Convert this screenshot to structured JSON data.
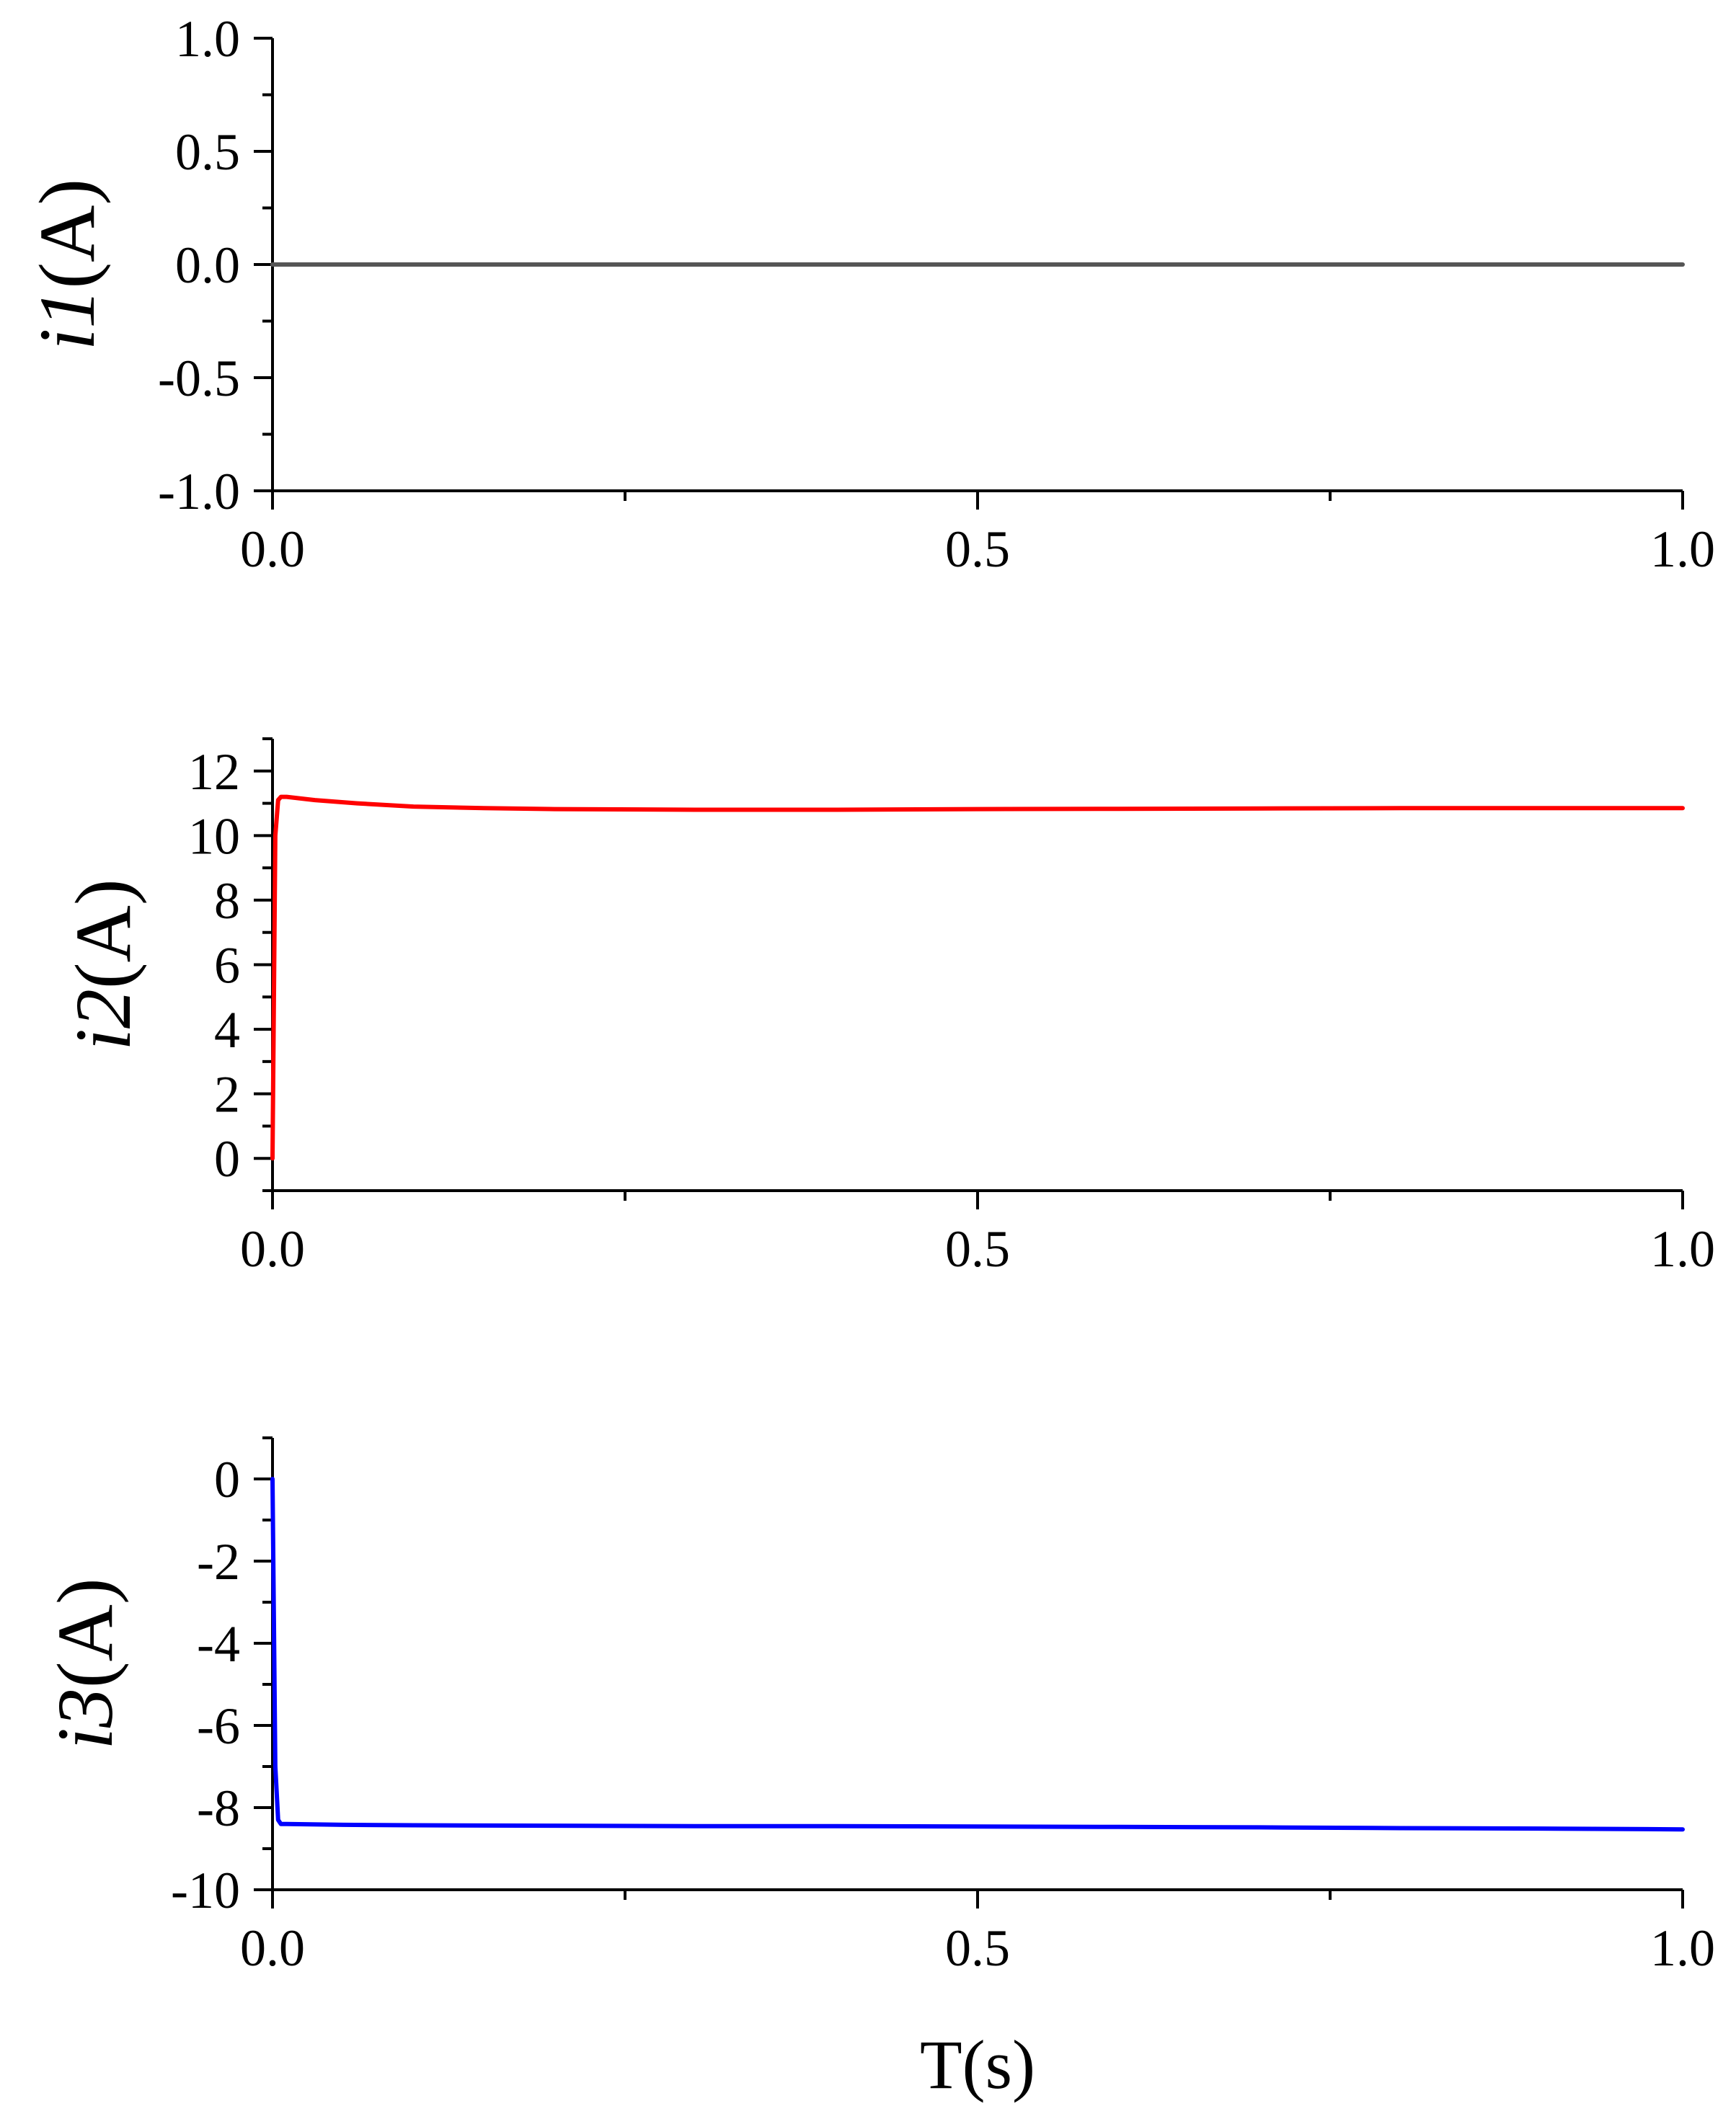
{
  "chart_data": [
    {
      "type": "line",
      "ylabel_italic": "i1",
      "ylabel_rest": "(A)",
      "xlim": [
        0,
        1.0
      ],
      "ylim": [
        -1.0,
        1.0
      ],
      "xticks": [
        0.0,
        0.5,
        1.0
      ],
      "xtick_labels": [
        "0.0",
        "0.5",
        "1.0"
      ],
      "yticks": [
        -1.0,
        -0.5,
        0.0,
        0.5,
        1.0
      ],
      "ytick_labels": [
        "-1.0",
        "-0.5",
        "0.0",
        "0.5",
        "1.0"
      ],
      "series": [
        {
          "color": "#555555",
          "x": [
            0,
            1.0
          ],
          "y": [
            0,
            0
          ]
        }
      ]
    },
    {
      "type": "line",
      "ylabel_italic": "i2",
      "ylabel_rest": "(A)",
      "xlim": [
        0,
        1.0
      ],
      "ylim": [
        -1,
        13
      ],
      "xticks": [
        0.0,
        0.5,
        1.0
      ],
      "xtick_labels": [
        "0.0",
        "0.5",
        "1.0"
      ],
      "yticks": [
        0,
        2,
        4,
        6,
        8,
        10,
        12
      ],
      "ytick_labels": [
        "0",
        "2",
        "4",
        "6",
        "8",
        "10",
        "12"
      ],
      "series": [
        {
          "color": "#ff0000",
          "x": [
            0,
            0.002,
            0.004,
            0.006,
            0.01,
            0.03,
            0.06,
            0.1,
            0.15,
            0.2,
            0.3,
            0.4,
            0.5,
            0.6,
            0.7,
            0.8,
            0.9,
            1.0
          ],
          "y": [
            0,
            10.0,
            11.1,
            11.2,
            11.2,
            11.1,
            11.0,
            10.9,
            10.85,
            10.82,
            10.8,
            10.8,
            10.82,
            10.83,
            10.84,
            10.85,
            10.85,
            10.85
          ]
        }
      ]
    },
    {
      "type": "line",
      "ylabel_italic": "i3",
      "ylabel_rest": "(A)",
      "xlabel": "T(s)",
      "xlim": [
        0,
        1.0
      ],
      "ylim": [
        -10,
        1
      ],
      "xticks": [
        0.0,
        0.5,
        1.0
      ],
      "xtick_labels": [
        "0.0",
        "0.5",
        "1.0"
      ],
      "yticks": [
        -10,
        -8,
        -6,
        -4,
        -2,
        0
      ],
      "ytick_labels": [
        "-10",
        "-8",
        "-6",
        "-4",
        "-2",
        "0"
      ],
      "series": [
        {
          "color": "#0000ff",
          "x": [
            0,
            0.002,
            0.004,
            0.006,
            0.01,
            0.05,
            0.1,
            0.2,
            0.3,
            0.4,
            0.5,
            0.6,
            0.7,
            0.8,
            0.9,
            1.0
          ],
          "y": [
            0,
            -7.0,
            -8.3,
            -8.4,
            -8.4,
            -8.42,
            -8.43,
            -8.44,
            -8.45,
            -8.45,
            -8.46,
            -8.47,
            -8.48,
            -8.5,
            -8.51,
            -8.53
          ]
        }
      ]
    }
  ]
}
